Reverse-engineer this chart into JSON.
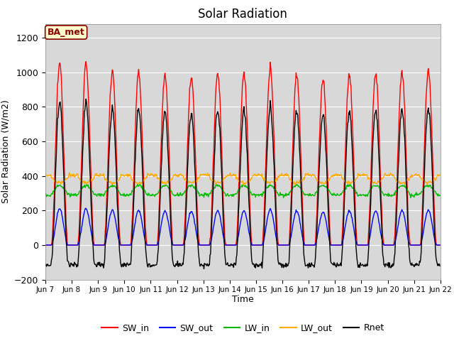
{
  "title": "Solar Radiation",
  "xlabel": "Time",
  "ylabel": "Solar Radiation (W/m2)",
  "ylim": [
    -200,
    1280
  ],
  "yticks": [
    -200,
    0,
    200,
    400,
    600,
    800,
    1000,
    1200
  ],
  "annotation": "BA_met",
  "colors": {
    "SW_in": "#ff0000",
    "SW_out": "#0000ff",
    "LW_in": "#00bb00",
    "LW_out": "#ffaa00",
    "Rnet": "#000000"
  },
  "n_days": 15,
  "start_day": 7,
  "SW_in_peak": [
    1050,
    1050,
    1010,
    990,
    980,
    970,
    990,
    990,
    1020,
    990,
    960,
    980,
    990,
    1000,
    1010
  ],
  "sunrise": 5.5,
  "sunset": 20.5
}
